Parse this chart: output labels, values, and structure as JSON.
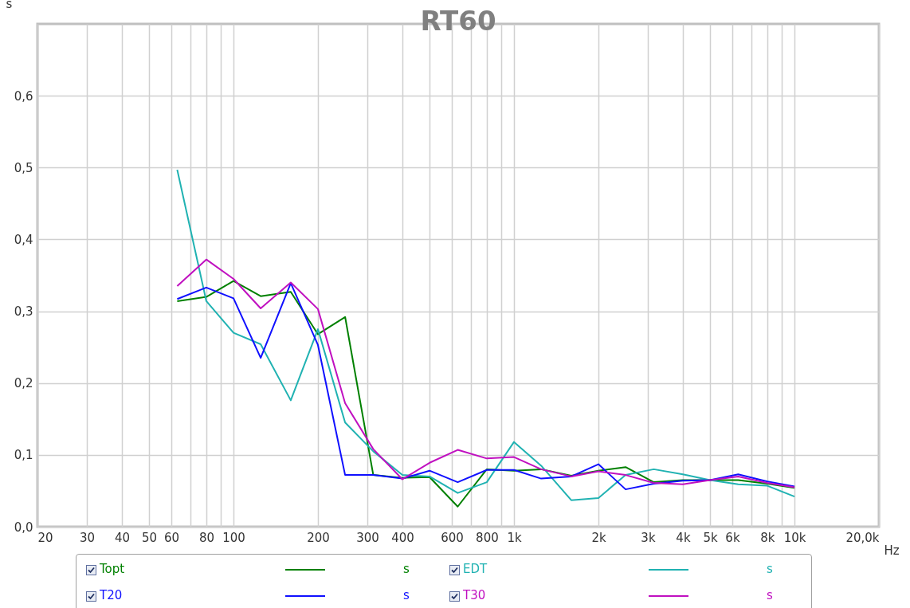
{
  "chart_data": {
    "type": "line",
    "title": "RT60",
    "xlabel": "Hz",
    "ylabel": "s",
    "log": "x",
    "grid": true,
    "legend": "bottom",
    "line_style": "solid",
    "marker": "none",
    "x": [
      63,
      80,
      100,
      125,
      160,
      200,
      250,
      315,
      400,
      500,
      630,
      800,
      1000,
      1250,
      1600,
      2000,
      2500,
      3150,
      4000,
      5000,
      6300,
      8000,
      10000
    ],
    "xlim": [
      20,
      20000
    ],
    "xticks": [
      20,
      30,
      40,
      50,
      60,
      {
        "value": 70,
        "label": null
      },
      80,
      {
        "value": 90,
        "label": null
      },
      100,
      200,
      300,
      400,
      {
        "value": 500,
        "label": null
      },
      600,
      {
        "value": 700,
        "label": null
      },
      800,
      {
        "value": 900,
        "label": null
      },
      {
        "value": 1000,
        "label": "1k"
      },
      {
        "value": 2000,
        "label": "2k"
      },
      {
        "value": 3000,
        "label": "3k"
      },
      {
        "value": 4000,
        "label": "4k"
      },
      {
        "value": 5000,
        "label": "5k"
      },
      {
        "value": 6000,
        "label": "6k"
      },
      {
        "value": 7000,
        "label": null
      },
      {
        "value": 8000,
        "label": "8k"
      },
      {
        "value": 9000,
        "label": null
      },
      {
        "value": 10000,
        "label": "10k"
      },
      {
        "value": 20000,
        "label": "20,0k"
      }
    ],
    "ylim": [
      0,
      0.7
    ],
    "yticks": [
      {
        "value": 0,
        "label": "0,0"
      },
      {
        "value": 0.1,
        "label": "0,1"
      },
      {
        "value": 0.2,
        "label": "0,2"
      },
      {
        "value": 0.3,
        "label": "0,3"
      },
      {
        "value": 0.4,
        "label": "0,4"
      },
      {
        "value": 0.5,
        "label": "0,5"
      },
      {
        "value": 0.6,
        "label": "0,6"
      }
    ],
    "series": [
      {
        "name": "Topt",
        "color": "#008000",
        "values": [
          0.314,
          0.32,
          0.342,
          0.321,
          0.327,
          0.268,
          0.292,
          0.072,
          0.068,
          0.069,
          0.028,
          0.08,
          0.078,
          0.08,
          0.071,
          0.078,
          0.083,
          0.062,
          0.065,
          0.065,
          0.065,
          0.06,
          0.054
        ]
      },
      {
        "name": "EDT",
        "color": "#20b2b2",
        "values": [
          0.497,
          0.314,
          0.27,
          0.254,
          0.176,
          0.275,
          0.145,
          0.105,
          0.072,
          0.07,
          0.047,
          0.062,
          0.118,
          0.085,
          0.037,
          0.04,
          0.072,
          0.08,
          0.073,
          0.065,
          0.059,
          0.057,
          0.042
        ]
      },
      {
        "name": "T20",
        "color": "#1010ff",
        "values": [
          0.317,
          0.333,
          0.318,
          0.235,
          0.339,
          0.253,
          0.072,
          0.072,
          0.067,
          0.078,
          0.062,
          0.079,
          0.079,
          0.067,
          0.07,
          0.087,
          0.052,
          0.06,
          0.064,
          0.065,
          0.073,
          0.063,
          0.056
        ]
      },
      {
        "name": "T30",
        "color": "#c010c0",
        "values": [
          0.335,
          0.372,
          0.345,
          0.304,
          0.34,
          0.303,
          0.172,
          0.108,
          0.066,
          0.089,
          0.107,
          0.095,
          0.097,
          0.08,
          0.07,
          0.077,
          0.072,
          0.061,
          0.059,
          0.065,
          0.07,
          0.061,
          0.055
        ]
      }
    ]
  }
}
